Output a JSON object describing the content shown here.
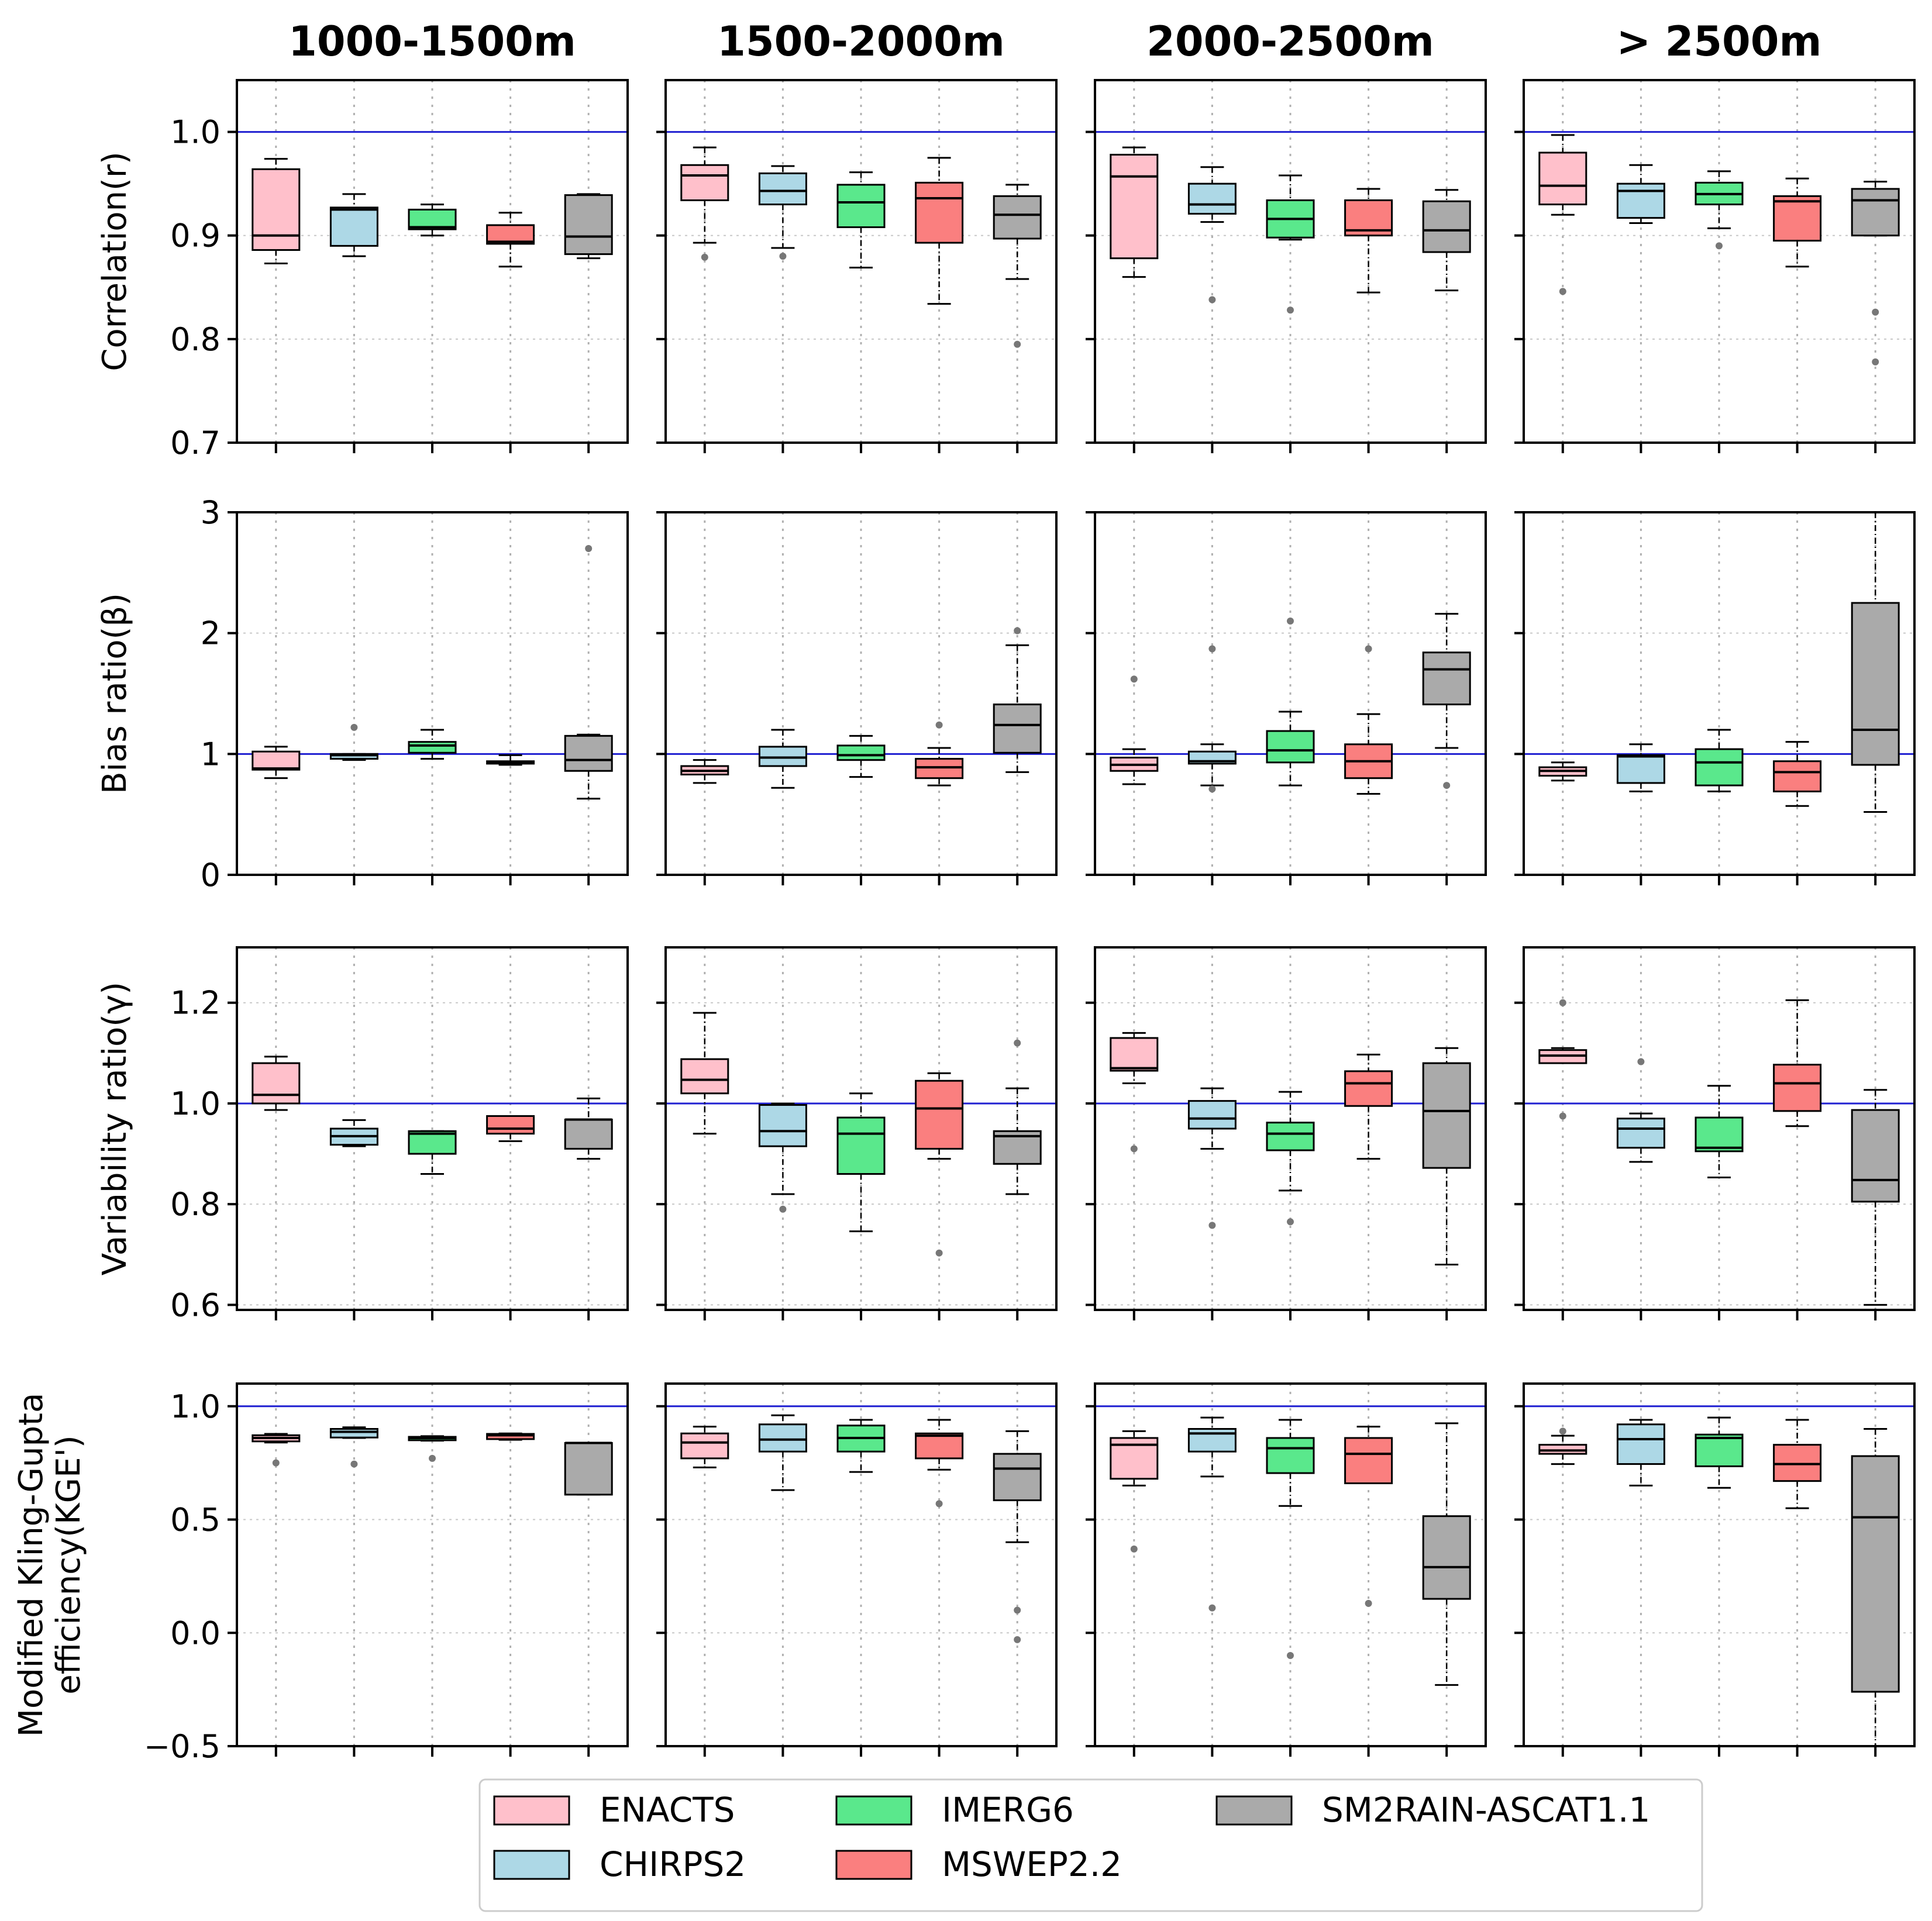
{
  "chart_data": {
    "type": "box",
    "datasets": [
      "ENACTS",
      "CHIRPS2",
      "IMERG6",
      "MSWEP2.2",
      "SM2RAIN-ASCAT1.1"
    ],
    "colors": {
      "ENACTS": "#ffc0cb",
      "CHIRPS2": "#add8e6",
      "IMERG6": "#5ae88c",
      "MSWEP2.2": "#fa7f7f",
      "SM2RAIN-ASCAT1.1": "#aaaaaa"
    },
    "reference_line_color": "#1f1fd1",
    "elevation_bands": [
      "1000-1500m",
      "1500-2000m",
      "2000-2500m",
      "> 2500m"
    ],
    "legend": {
      "position": "bottom-center",
      "entries": [
        "ENACTS",
        "IMERG6",
        "SM2RAIN-ASCAT1.1",
        "CHIRPS2",
        "MSWEP2.2"
      ]
    },
    "grid": true,
    "metrics": [
      {
        "ylabel": [
          "Correlation(r)"
        ],
        "ylim": [
          0.7,
          1.05
        ],
        "yticks": [
          "0.7",
          "0.8",
          "0.9",
          "1.0"
        ],
        "reference": 1.0,
        "boxes": [
          [
            {
              "lo": 0.873,
              "q1": 0.886,
              "med": 0.9,
              "q3": 0.964,
              "hi": 0.974,
              "out": []
            },
            {
              "lo": 0.88,
              "q1": 0.89,
              "med": 0.925,
              "q3": 0.927,
              "hi": 0.94,
              "out": []
            },
            {
              "lo": 0.9,
              "q1": 0.906,
              "med": 0.908,
              "q3": 0.925,
              "hi": 0.93,
              "out": []
            },
            {
              "lo": 0.87,
              "q1": 0.892,
              "med": 0.894,
              "q3": 0.91,
              "hi": 0.922,
              "out": []
            },
            {
              "lo": 0.878,
              "q1": 0.882,
              "med": 0.899,
              "q3": 0.939,
              "hi": 0.94,
              "out": []
            }
          ],
          [
            {
              "lo": 0.893,
              "q1": 0.934,
              "med": 0.958,
              "q3": 0.968,
              "hi": 0.985,
              "out": [
                0.879
              ]
            },
            {
              "lo": 0.888,
              "q1": 0.93,
              "med": 0.943,
              "q3": 0.96,
              "hi": 0.967,
              "out": [
                0.88
              ]
            },
            {
              "lo": 0.869,
              "q1": 0.908,
              "med": 0.932,
              "q3": 0.949,
              "hi": 0.961,
              "out": []
            },
            {
              "lo": 0.834,
              "q1": 0.893,
              "med": 0.936,
              "q3": 0.951,
              "hi": 0.975,
              "out": []
            },
            {
              "lo": 0.858,
              "q1": 0.897,
              "med": 0.92,
              "q3": 0.938,
              "hi": 0.949,
              "out": [
                0.795
              ]
            }
          ],
          [
            {
              "lo": 0.86,
              "q1": 0.878,
              "med": 0.957,
              "q3": 0.978,
              "hi": 0.985,
              "out": []
            },
            {
              "lo": 0.913,
              "q1": 0.921,
              "med": 0.93,
              "q3": 0.95,
              "hi": 0.966,
              "out": [
                0.838
              ]
            },
            {
              "lo": 0.896,
              "q1": 0.898,
              "med": 0.916,
              "q3": 0.934,
              "hi": 0.958,
              "out": [
                0.828
              ]
            },
            {
              "lo": 0.845,
              "q1": 0.9,
              "med": 0.905,
              "q3": 0.934,
              "hi": 0.945,
              "out": []
            },
            {
              "lo": 0.847,
              "q1": 0.884,
              "med": 0.905,
              "q3": 0.933,
              "hi": 0.944,
              "out": []
            }
          ],
          [
            {
              "lo": 0.92,
              "q1": 0.93,
              "med": 0.948,
              "q3": 0.98,
              "hi": 0.997,
              "out": [
                0.846
              ]
            },
            {
              "lo": 0.912,
              "q1": 0.917,
              "med": 0.943,
              "q3": 0.95,
              "hi": 0.968,
              "out": []
            },
            {
              "lo": 0.907,
              "q1": 0.93,
              "med": 0.94,
              "q3": 0.951,
              "hi": 0.962,
              "out": [
                0.89
              ]
            },
            {
              "lo": 0.87,
              "q1": 0.895,
              "med": 0.933,
              "q3": 0.938,
              "hi": 0.955,
              "out": []
            },
            {
              "lo": 0.9,
              "q1": 0.9,
              "med": 0.934,
              "q3": 0.945,
              "hi": 0.952,
              "out": [
                0.826,
                0.778
              ]
            }
          ]
        ]
      },
      {
        "ylabel": [
          "Bias ratio(β)"
        ],
        "ylim": [
          0,
          3
        ],
        "yticks": [
          "0",
          "1",
          "2",
          "3"
        ],
        "reference": 1.0,
        "boxes": [
          [
            {
              "lo": 0.8,
              "q1": 0.87,
              "med": 0.88,
              "q3": 1.02,
              "hi": 1.06,
              "out": []
            },
            {
              "lo": 0.95,
              "q1": 0.96,
              "med": 0.99,
              "q3": 1.0,
              "hi": 1.0,
              "out": [
                1.22
              ]
            },
            {
              "lo": 0.96,
              "q1": 1.01,
              "med": 1.07,
              "q3": 1.1,
              "hi": 1.2,
              "out": []
            },
            {
              "lo": 0.91,
              "q1": 0.92,
              "med": 0.93,
              "q3": 0.94,
              "hi": 0.99,
              "out": []
            },
            {
              "lo": 0.63,
              "q1": 0.86,
              "med": 0.95,
              "q3": 1.15,
              "hi": 1.16,
              "out": [
                2.7
              ]
            }
          ],
          [
            {
              "lo": 0.76,
              "q1": 0.83,
              "med": 0.86,
              "q3": 0.9,
              "hi": 0.95,
              "out": []
            },
            {
              "lo": 0.72,
              "q1": 0.9,
              "med": 0.97,
              "q3": 1.06,
              "hi": 1.2,
              "out": []
            },
            {
              "lo": 0.81,
              "q1": 0.95,
              "med": 0.99,
              "q3": 1.07,
              "hi": 1.15,
              "out": []
            },
            {
              "lo": 0.74,
              "q1": 0.8,
              "med": 0.89,
              "q3": 0.96,
              "hi": 1.05,
              "out": [
                1.24
              ]
            },
            {
              "lo": 0.85,
              "q1": 1.01,
              "med": 1.24,
              "q3": 1.41,
              "hi": 1.9,
              "out": [
                2.02
              ]
            }
          ],
          [
            {
              "lo": 0.75,
              "q1": 0.86,
              "med": 0.91,
              "q3": 0.97,
              "hi": 1.04,
              "out": [
                1.62
              ]
            },
            {
              "lo": 0.74,
              "q1": 0.92,
              "med": 0.94,
              "q3": 1.02,
              "hi": 1.08,
              "out": [
                1.87,
                0.71
              ]
            },
            {
              "lo": 0.74,
              "q1": 0.93,
              "med": 1.03,
              "q3": 1.19,
              "hi": 1.35,
              "out": [
                2.1
              ]
            },
            {
              "lo": 0.67,
              "q1": 0.8,
              "med": 0.94,
              "q3": 1.08,
              "hi": 1.33,
              "out": [
                1.87
              ]
            },
            {
              "lo": 1.05,
              "q1": 1.41,
              "med": 1.7,
              "q3": 1.84,
              "hi": 2.16,
              "out": [
                0.74
              ]
            }
          ],
          [
            {
              "lo": 0.78,
              "q1": 0.82,
              "med": 0.86,
              "q3": 0.89,
              "hi": 0.93,
              "out": []
            },
            {
              "lo": 0.69,
              "q1": 0.76,
              "med": 0.98,
              "q3": 0.99,
              "hi": 1.08,
              "out": []
            },
            {
              "lo": 0.69,
              "q1": 0.74,
              "med": 0.93,
              "q3": 1.04,
              "hi": 1.2,
              "out": []
            },
            {
              "lo": 0.57,
              "q1": 0.69,
              "med": 0.85,
              "q3": 0.94,
              "hi": 1.1,
              "out": []
            },
            {
              "lo": 0.52,
              "q1": 0.91,
              "med": 1.2,
              "q3": 2.25,
              "hi": 3.0,
              "out": []
            }
          ]
        ]
      },
      {
        "ylabel": [
          "Variability ratio(γ)"
        ],
        "ylim": [
          0.59,
          1.31
        ],
        "yticks": [
          "0.6",
          "0.8",
          "1.0",
          "1.2"
        ],
        "reference": 1.0,
        "boxes": [
          [
            {
              "lo": 0.987,
              "q1": 1.0,
              "med": 1.017,
              "q3": 1.08,
              "hi": 1.093,
              "out": []
            },
            {
              "lo": 0.915,
              "q1": 0.918,
              "med": 0.935,
              "q3": 0.95,
              "hi": 0.967,
              "out": []
            },
            {
              "lo": 0.86,
              "q1": 0.9,
              "med": 0.94,
              "q3": 0.945,
              "hi": 0.945,
              "out": []
            },
            {
              "lo": 0.925,
              "q1": 0.94,
              "med": 0.95,
              "q3": 0.975,
              "hi": 0.975,
              "out": []
            },
            {
              "lo": 0.89,
              "q1": 0.91,
              "med": 0.968,
              "q3": 0.968,
              "hi": 1.01,
              "out": []
            }
          ],
          [
            {
              "lo": 0.94,
              "q1": 1.02,
              "med": 1.047,
              "q3": 1.088,
              "hi": 1.18,
              "out": []
            },
            {
              "lo": 0.82,
              "q1": 0.915,
              "med": 0.945,
              "q3": 0.997,
              "hi": 1.0,
              "out": [
                0.79
              ]
            },
            {
              "lo": 0.746,
              "q1": 0.86,
              "med": 0.94,
              "q3": 0.972,
              "hi": 1.02,
              "out": []
            },
            {
              "lo": 0.89,
              "q1": 0.91,
              "med": 0.99,
              "q3": 1.045,
              "hi": 1.06,
              "out": [
                0.703
              ]
            },
            {
              "lo": 0.82,
              "q1": 0.88,
              "med": 0.935,
              "q3": 0.945,
              "hi": 1.03,
              "out": [
                1.12
              ]
            }
          ],
          [
            {
              "lo": 1.04,
              "q1": 1.065,
              "med": 1.07,
              "q3": 1.13,
              "hi": 1.14,
              "out": [
                0.91
              ]
            },
            {
              "lo": 0.91,
              "q1": 0.95,
              "med": 0.97,
              "q3": 1.005,
              "hi": 1.03,
              "out": [
                0.758
              ]
            },
            {
              "lo": 0.827,
              "q1": 0.907,
              "med": 0.94,
              "q3": 0.962,
              "hi": 1.023,
              "out": [
                0.765
              ]
            },
            {
              "lo": 0.89,
              "q1": 0.995,
              "med": 1.04,
              "q3": 1.064,
              "hi": 1.097,
              "out": []
            },
            {
              "lo": 0.68,
              "q1": 0.872,
              "med": 0.985,
              "q3": 1.08,
              "hi": 1.11,
              "out": []
            }
          ],
          [
            {
              "lo": 1.08,
              "q1": 1.08,
              "med": 1.095,
              "q3": 1.106,
              "hi": 1.11,
              "out": [
                1.2,
                0.975
              ]
            },
            {
              "lo": 0.884,
              "q1": 0.912,
              "med": 0.95,
              "q3": 0.97,
              "hi": 0.98,
              "out": [
                1.083
              ]
            },
            {
              "lo": 0.853,
              "q1": 0.905,
              "med": 0.912,
              "q3": 0.972,
              "hi": 1.035,
              "out": []
            },
            {
              "lo": 0.955,
              "q1": 0.985,
              "med": 1.04,
              "q3": 1.077,
              "hi": 1.205,
              "out": []
            },
            {
              "lo": 0.6,
              "q1": 0.805,
              "med": 0.848,
              "q3": 0.987,
              "hi": 1.027,
              "out": []
            }
          ]
        ]
      },
      {
        "ylabel": [
          "Modified Kling-Gupta",
          "efficiency(KGE')"
        ],
        "ylim": [
          -0.5,
          1.1
        ],
        "yticks": [
          "−0.5",
          "0.0",
          "0.5",
          "1.0"
        ],
        "reference": 1.0,
        "boxes": [
          [
            {
              "lo": 0.84,
              "q1": 0.845,
              "med": 0.86,
              "q3": 0.872,
              "hi": 0.878,
              "out": [
                0.75
              ]
            },
            {
              "lo": 0.86,
              "q1": 0.862,
              "med": 0.887,
              "q3": 0.9,
              "hi": 0.907,
              "out": [
                0.745
              ]
            },
            {
              "lo": 0.848,
              "q1": 0.85,
              "med": 0.86,
              "q3": 0.865,
              "hi": 0.868,
              "out": [
                0.77
              ]
            },
            {
              "lo": 0.852,
              "q1": 0.855,
              "med": 0.872,
              "q3": 0.878,
              "hi": 0.88,
              "out": []
            },
            {
              "lo": 0.61,
              "q1": 0.61,
              "med": 0.838,
              "q3": 0.838,
              "hi": 0.838,
              "out": []
            }
          ],
          [
            {
              "lo": 0.73,
              "q1": 0.77,
              "med": 0.84,
              "q3": 0.88,
              "hi": 0.91,
              "out": []
            },
            {
              "lo": 0.63,
              "q1": 0.8,
              "med": 0.853,
              "q3": 0.92,
              "hi": 0.96,
              "out": []
            },
            {
              "lo": 0.71,
              "q1": 0.8,
              "med": 0.86,
              "q3": 0.915,
              "hi": 0.94,
              "out": []
            },
            {
              "lo": 0.72,
              "q1": 0.77,
              "med": 0.87,
              "q3": 0.88,
              "hi": 0.94,
              "out": [
                0.57
              ]
            },
            {
              "lo": 0.4,
              "q1": 0.585,
              "med": 0.725,
              "q3": 0.79,
              "hi": 0.89,
              "out": [
                0.1,
                -0.03
              ]
            }
          ],
          [
            {
              "lo": 0.65,
              "q1": 0.68,
              "med": 0.83,
              "q3": 0.86,
              "hi": 0.89,
              "out": [
                0.37
              ]
            },
            {
              "lo": 0.69,
              "q1": 0.8,
              "med": 0.88,
              "q3": 0.9,
              "hi": 0.95,
              "out": [
                0.11
              ]
            },
            {
              "lo": 0.56,
              "q1": 0.705,
              "med": 0.815,
              "q3": 0.86,
              "hi": 0.94,
              "out": [
                -0.1
              ]
            },
            {
              "lo": 0.66,
              "q1": 0.66,
              "med": 0.79,
              "q3": 0.86,
              "hi": 0.91,
              "out": [
                0.13
              ]
            },
            {
              "lo": -0.23,
              "q1": 0.15,
              "med": 0.29,
              "q3": 0.515,
              "hi": 0.925,
              "out": []
            }
          ],
          [
            {
              "lo": 0.745,
              "q1": 0.79,
              "med": 0.805,
              "q3": 0.83,
              "hi": 0.87,
              "out": [
                0.89
              ]
            },
            {
              "lo": 0.65,
              "q1": 0.745,
              "med": 0.855,
              "q3": 0.92,
              "hi": 0.94,
              "out": []
            },
            {
              "lo": 0.64,
              "q1": 0.735,
              "med": 0.86,
              "q3": 0.875,
              "hi": 0.95,
              "out": []
            },
            {
              "lo": 0.55,
              "q1": 0.67,
              "med": 0.745,
              "q3": 0.83,
              "hi": 0.94,
              "out": []
            },
            {
              "lo": -0.5,
              "q1": -0.26,
              "med": 0.51,
              "q3": 0.78,
              "hi": 0.9,
              "out": []
            }
          ]
        ]
      }
    ]
  }
}
